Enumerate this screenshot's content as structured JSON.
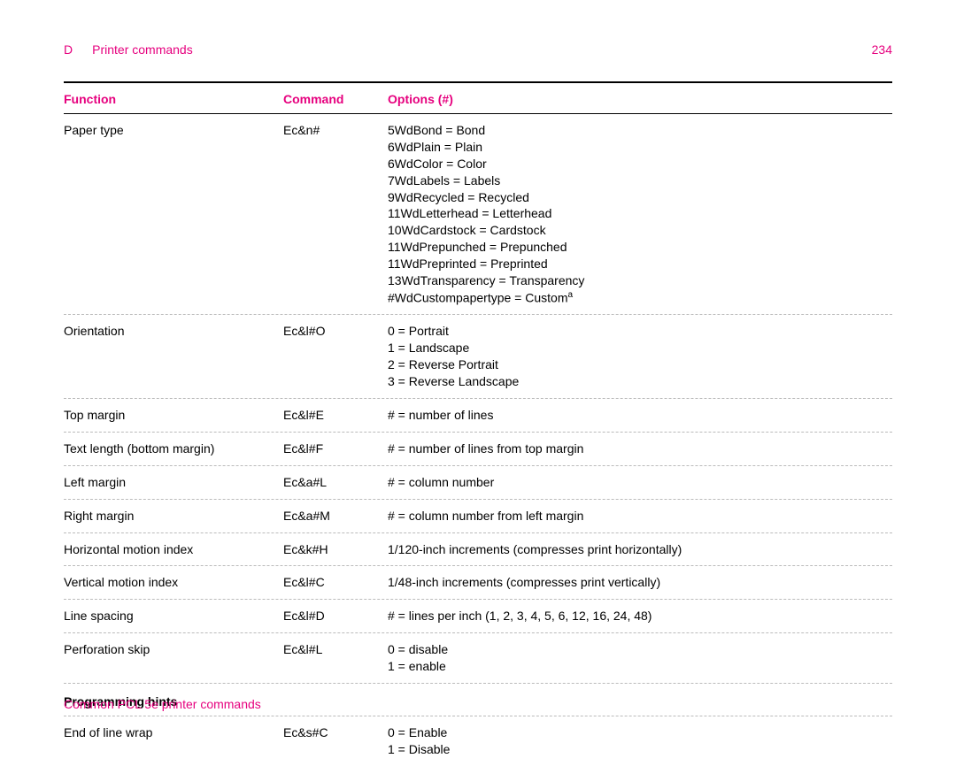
{
  "header": {
    "section_letter": "D",
    "section_title": "Printer commands",
    "page_number": "234"
  },
  "columns": {
    "c1": "Function",
    "c2": "Command",
    "c3": "Options (#)"
  },
  "rows": [
    {
      "function": "Paper type",
      "command": "Ec&n#",
      "options": [
        "5WdBond = Bond",
        "6WdPlain = Plain",
        "6WdColor = Color",
        "7WdLabels = Labels",
        "9WdRecycled = Recycled",
        "11WdLetterhead = Letterhead",
        "10WdCardstock = Cardstock",
        "11WdPrepunched = Prepunched",
        "11WdPreprinted = Preprinted",
        "13WdTransparency = Transparency"
      ],
      "options_tail": "#WdCustompapertype = Custom",
      "options_tail_sup": "a"
    },
    {
      "function": "Orientation",
      "command": "Ec&l#O",
      "options": [
        "0 = Portrait",
        "1 = Landscape",
        "2 = Reverse Portrait",
        "3 = Reverse Landscape"
      ]
    },
    {
      "function": "Top margin",
      "command": "Ec&l#E",
      "options": [
        "# = number of lines"
      ]
    },
    {
      "function": "Text length (bottom margin)",
      "command": "Ec&l#F",
      "options": [
        "# = number of lines from top margin"
      ]
    },
    {
      "function": "Left margin",
      "command": "Ec&a#L",
      "options": [
        "# = column number"
      ]
    },
    {
      "function": "Right margin",
      "command": "Ec&a#M",
      "options": [
        "# = column number from left margin"
      ]
    },
    {
      "function": "Horizontal motion index",
      "command": "Ec&k#H",
      "options": [
        "1/120-inch increments (compresses print horizontally)"
      ]
    },
    {
      "function": "Vertical motion index",
      "command": "Ec&l#C",
      "options": [
        "1/48-inch increments (compresses print vertically)"
      ]
    },
    {
      "function": "Line spacing",
      "command": "Ec&l#D",
      "options": [
        "# = lines per inch (1, 2, 3, 4, 5, 6, 12, 16, 24, 48)"
      ]
    },
    {
      "function": "Perforation skip",
      "command": "Ec&l#L",
      "options": [
        "0 = disable",
        "1 = enable"
      ]
    }
  ],
  "section2_title": "Programming hints",
  "rows2": [
    {
      "function": "End of line wrap",
      "command": "Ec&s#C",
      "options": [
        "0 = Enable",
        "1 = Disable"
      ]
    }
  ],
  "footer_text": "Common PCL 5e printer commands"
}
